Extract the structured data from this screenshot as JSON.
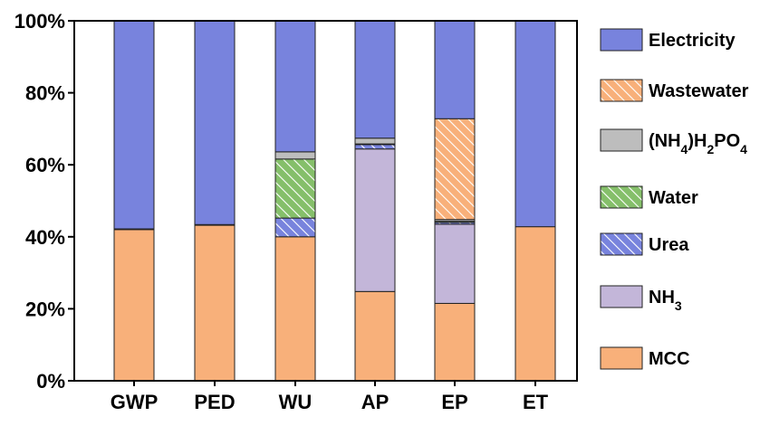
{
  "chart_data": {
    "type": "bar",
    "stacked": true,
    "categories": [
      "GWP",
      "PED",
      "WU",
      "AP",
      "EP",
      "ET"
    ],
    "ylim": [
      0,
      100
    ],
    "yticks": [
      "0%",
      "20%",
      "40%",
      "60%",
      "80%",
      "100%"
    ],
    "legend_position": "right",
    "series": [
      {
        "name": "MCC",
        "color": "#F8B07A",
        "pattern": "solid",
        "values": [
          42.0,
          43.2,
          40.0,
          24.8,
          21.5,
          42.8
        ]
      },
      {
        "name": "NH3",
        "color": "#C3B6D9",
        "pattern": "solid",
        "values": [
          0.0,
          0.0,
          0.0,
          39.6,
          22.0,
          0.0
        ]
      },
      {
        "name": "Urea",
        "color": "#7883DD",
        "pattern": "hatch",
        "values": [
          0.2,
          0.2,
          5.2,
          1.2,
          0.5,
          0.0
        ]
      },
      {
        "name": "Water",
        "color": "#85BF6A",
        "pattern": "hatch",
        "values": [
          0.0,
          0.0,
          16.4,
          0.2,
          0.3,
          0.0
        ]
      },
      {
        "name": "(NH4)H2PO4",
        "color": "#BDBDBD",
        "pattern": "solid",
        "values": [
          0.0,
          0.0,
          2.0,
          1.6,
          0.5,
          0.0
        ]
      },
      {
        "name": "Wastewater",
        "color": "#F8B07A",
        "pattern": "hatch",
        "values": [
          0.0,
          0.0,
          0.0,
          0.0,
          28.0,
          0.0
        ]
      },
      {
        "name": "Electricity",
        "color": "#7883DD",
        "pattern": "solid",
        "values": [
          57.8,
          56.6,
          36.4,
          32.6,
          27.2,
          57.2
        ]
      }
    ],
    "legend_order": [
      "Electricity",
      "Wastewater",
      "(NH4)H2PO4",
      "Water",
      "Urea",
      "NH3",
      "MCC"
    ]
  }
}
